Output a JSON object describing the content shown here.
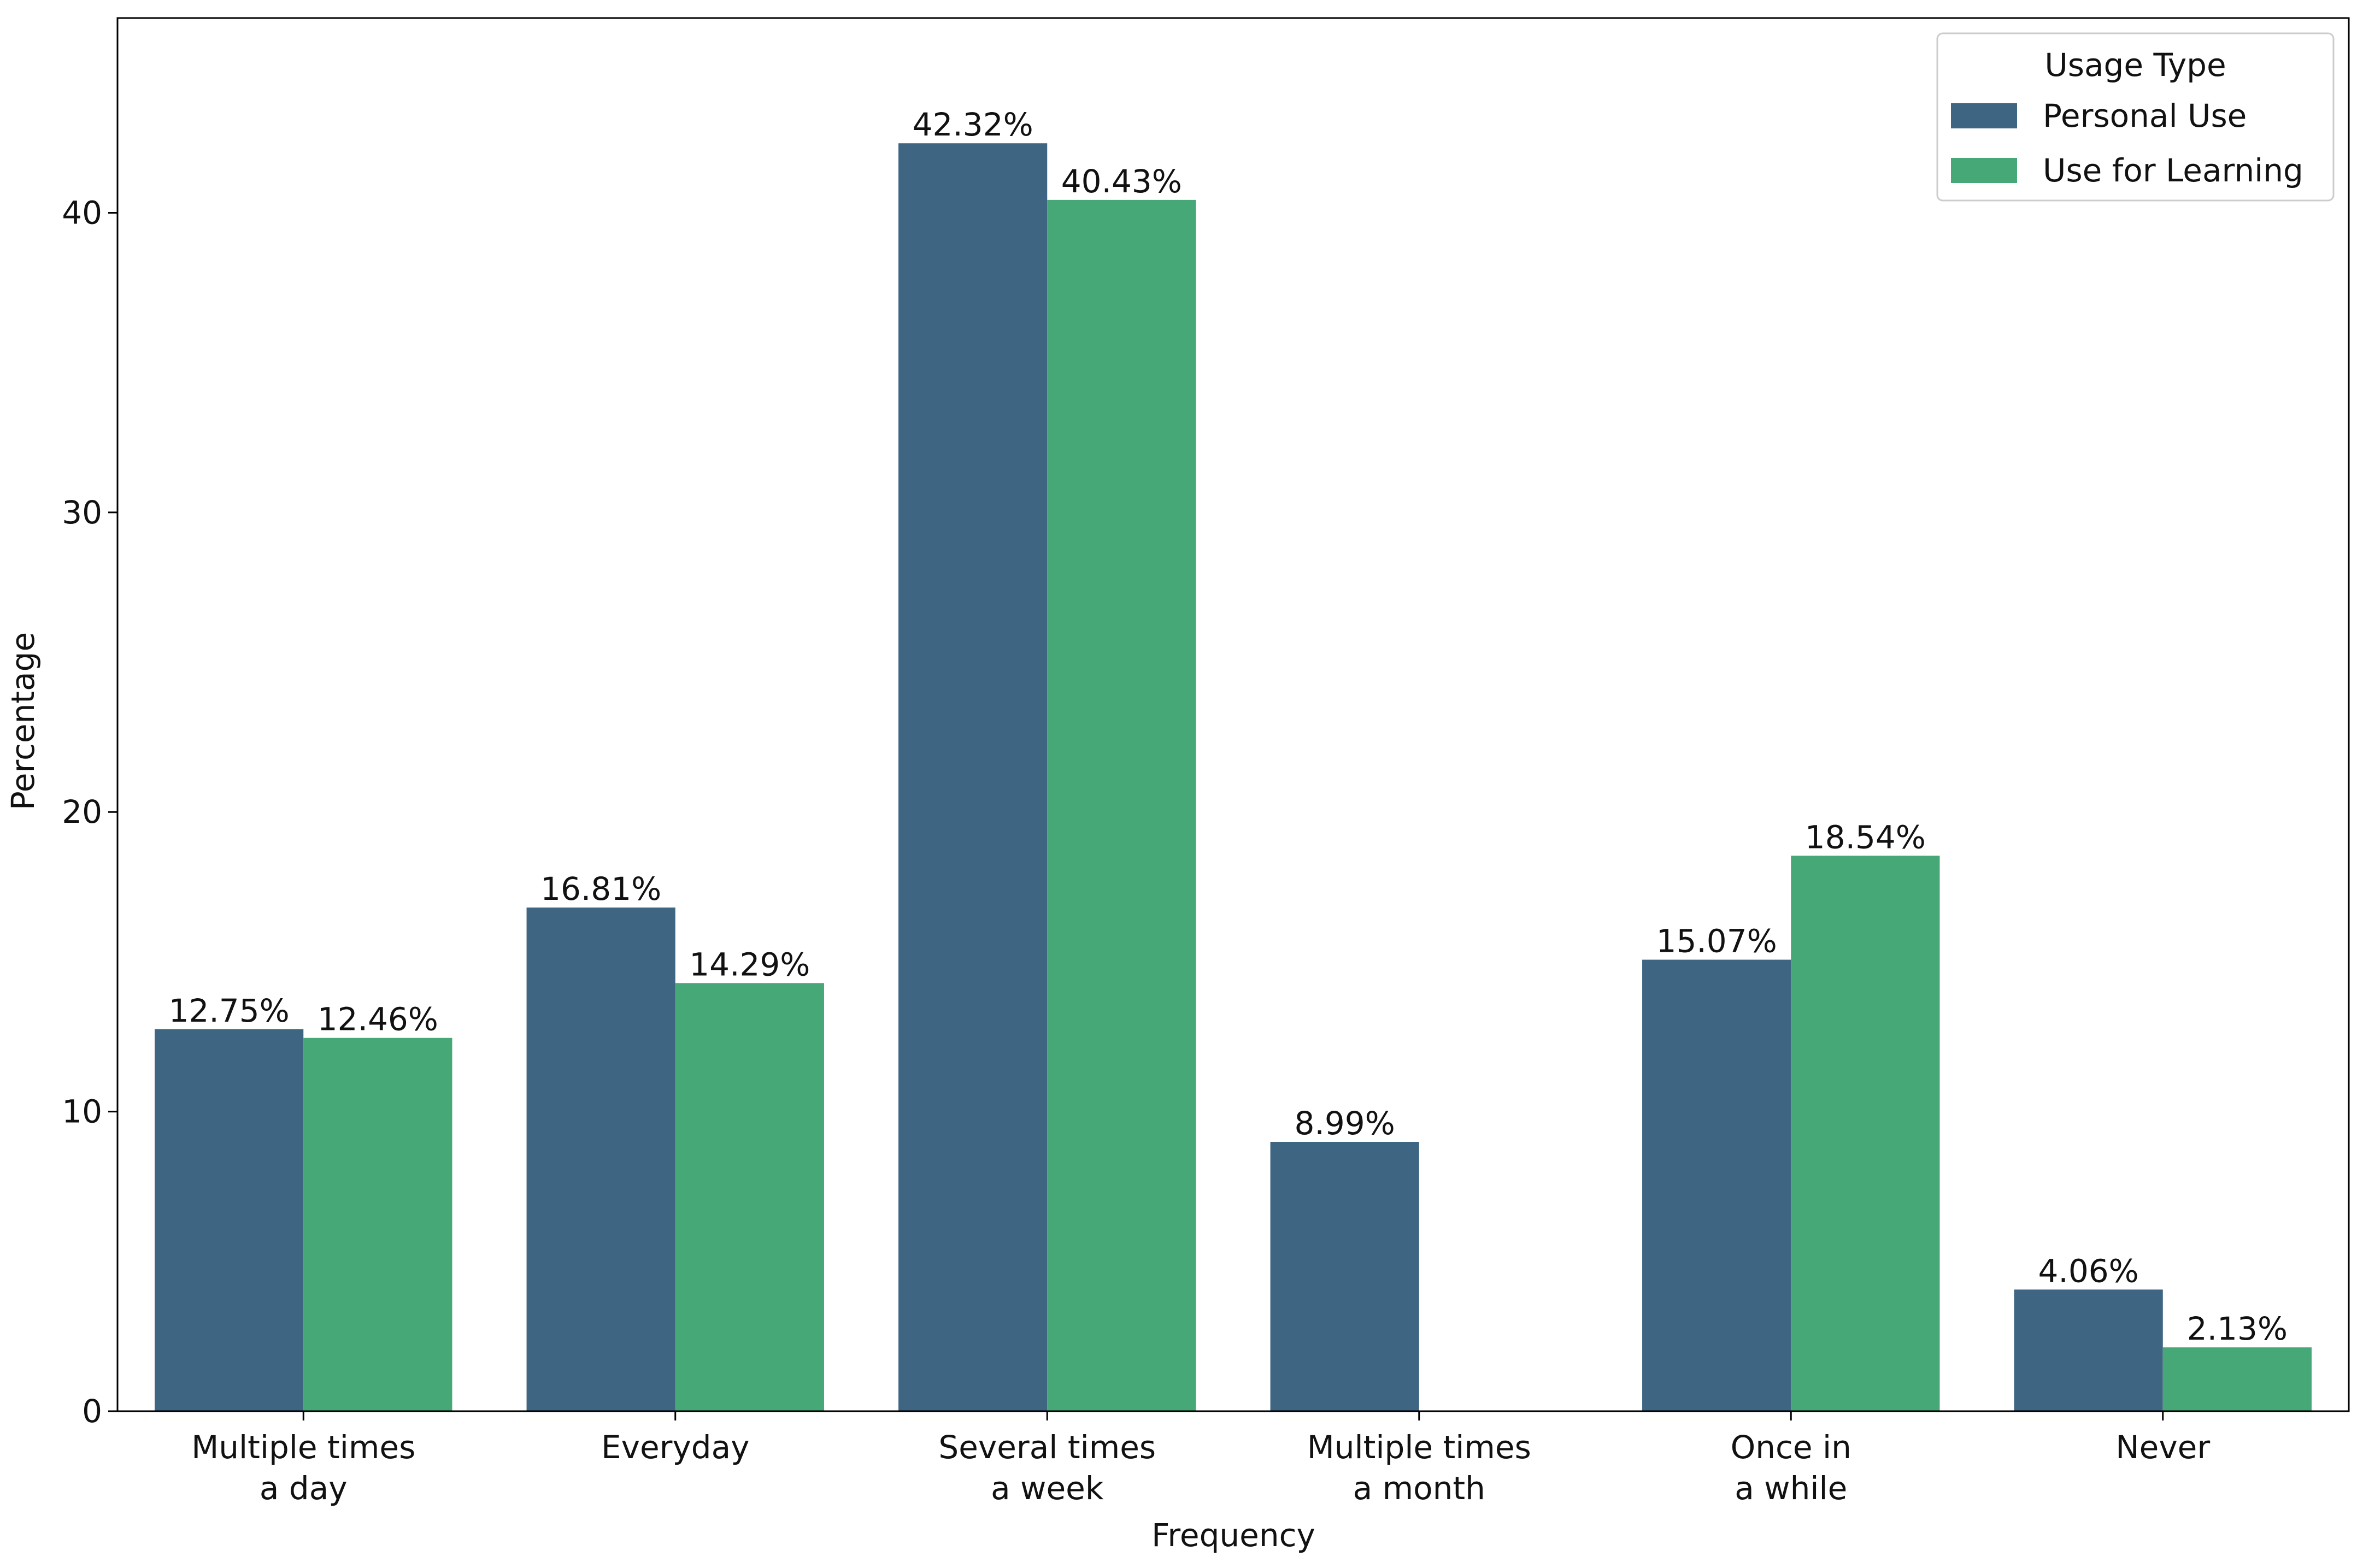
{
  "chart_data": {
    "type": "bar",
    "x_label": "Frequency",
    "y_label": "Percentage",
    "categories": [
      [
        "Multiple times",
        "a day"
      ],
      [
        "Everyday"
      ],
      [
        "Several times",
        "a week"
      ],
      [
        "Multiple times",
        "a month"
      ],
      [
        "Once in",
        "a while"
      ],
      [
        "Never"
      ]
    ],
    "series": [
      {
        "name": "Personal Use",
        "color": "#3e6582",
        "values": [
          12.75,
          16.81,
          42.32,
          8.99,
          15.07,
          4.06
        ],
        "value_labels": [
          "12.75%",
          "16.81%",
          "42.32%",
          "8.99%",
          "15.07%",
          "4.06%"
        ]
      },
      {
        "name": "Use for Learning",
        "color": "#45a876",
        "values": [
          12.46,
          14.29,
          40.43,
          null,
          18.54,
          2.13
        ],
        "value_labels": [
          "12.46%",
          "14.29%",
          "40.43%",
          null,
          "18.54%",
          "2.13%"
        ]
      }
    ],
    "ylim": [
      0,
      46.5
    ],
    "yticks": [
      0,
      10,
      20,
      30,
      40
    ],
    "legend_title": "Usage Type",
    "legend_position": "upper right"
  }
}
